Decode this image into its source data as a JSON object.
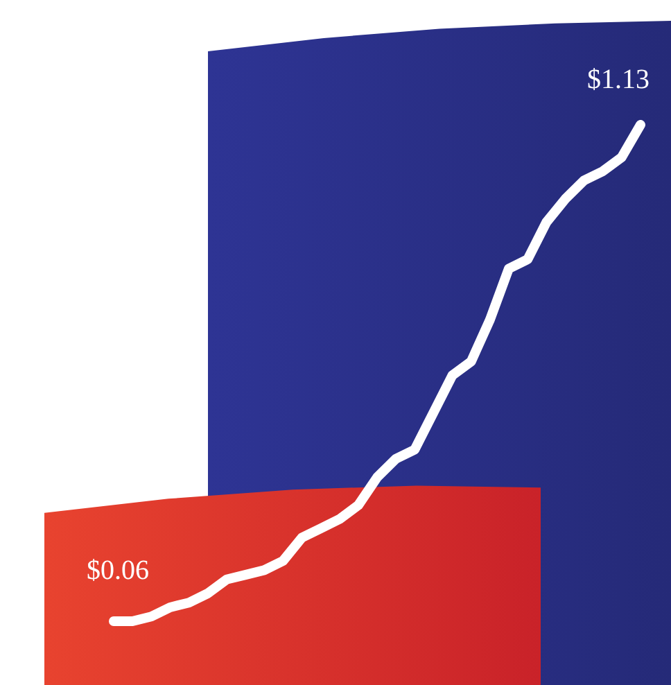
{
  "chart_data": {
    "type": "line",
    "categories": [
      null,
      null,
      null,
      null,
      null,
      null,
      null,
      null,
      null,
      null,
      null,
      null,
      null,
      null,
      null,
      null,
      null,
      null,
      null,
      null,
      null,
      null,
      null,
      null,
      null,
      null,
      null,
      null,
      null
    ],
    "series": [
      {
        "color": "#ffffff",
        "values": [
          0.06,
          0.06,
          0.07,
          0.09,
          0.1,
          0.12,
          0.15,
          0.16,
          0.17,
          0.19,
          0.24,
          0.26,
          0.28,
          0.31,
          0.37,
          0.41,
          0.43,
          0.51,
          0.59,
          0.62,
          0.71,
          0.82,
          0.84,
          0.92,
          0.97,
          1.01,
          1.03,
          1.06,
          1.13
        ],
        "value_labels": [
          "$0.06",
          null,
          null,
          null,
          null,
          null,
          null,
          null,
          null,
          null,
          null,
          null,
          null,
          null,
          null,
          null,
          null,
          null,
          null,
          null,
          null,
          null,
          null,
          null,
          null,
          null,
          null,
          null,
          "$1.13"
        ]
      }
    ]
  }
}
